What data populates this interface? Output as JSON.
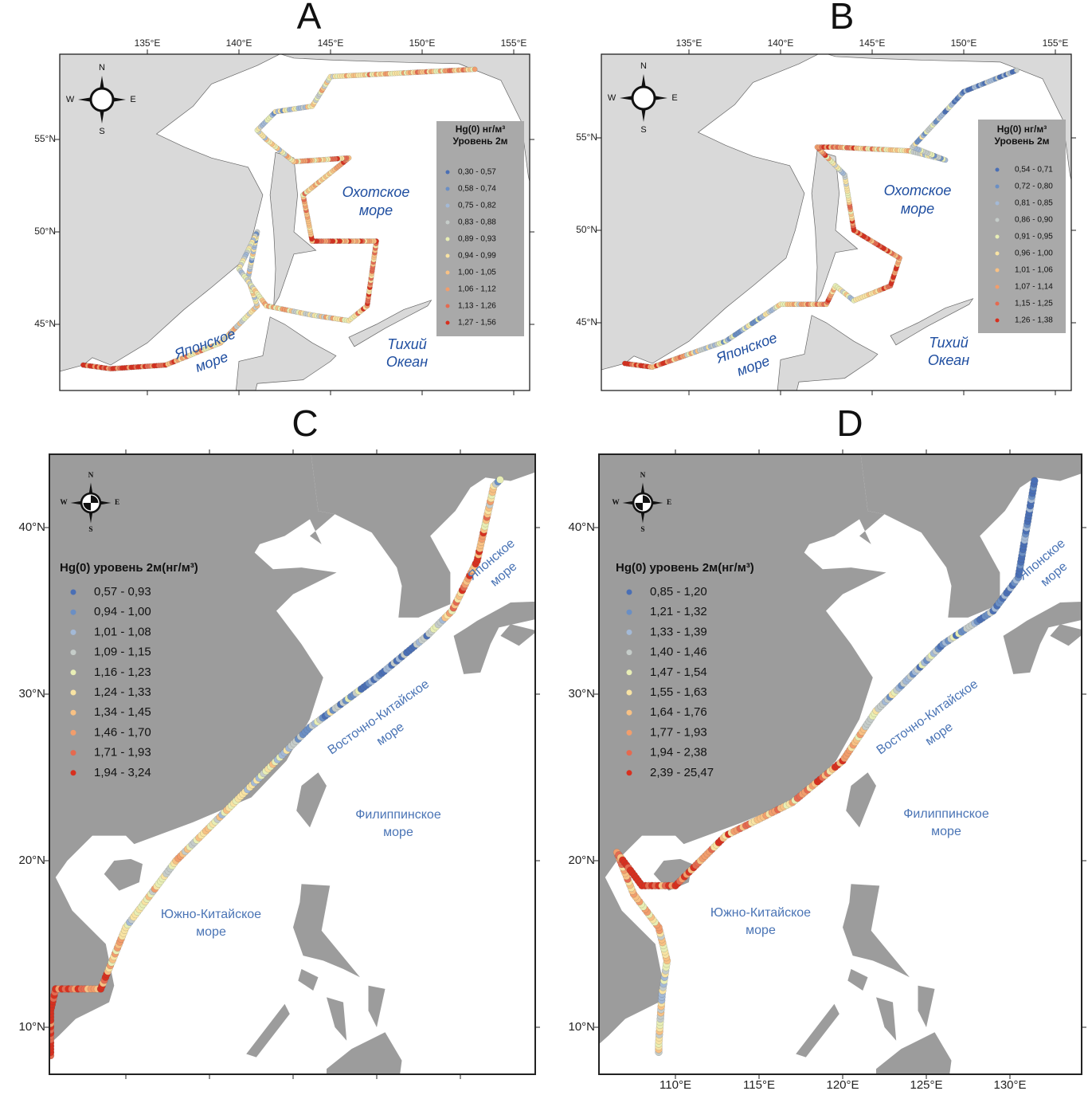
{
  "panels": [
    {
      "letter": "A",
      "x_ticks": [
        "135°E",
        "140°E",
        "145°E",
        "150°E",
        "155°E"
      ],
      "y_ticks": [
        "55°N",
        "50°N",
        "45°N"
      ],
      "compass": {
        "n": "N",
        "e": "E",
        "s": "S",
        "w": "W"
      },
      "legend": {
        "title": [
          "Hg(0) нг/м³",
          "Уровень 2м"
        ],
        "entries": [
          {
            "label": "0,30 - 0,57",
            "color": "#4a6fb5"
          },
          {
            "label": "0,58 - 0,74",
            "color": "#6b8fc4"
          },
          {
            "label": "0,75 - 0,82",
            "color": "#a3b9d6"
          },
          {
            "label": "0,83 - 0,88",
            "color": "#c5ccc9"
          },
          {
            "label": "0,89 - 0,93",
            "color": "#e8eeb5"
          },
          {
            "label": "0,94 - 0,99",
            "color": "#f8e3a3"
          },
          {
            "label": "1,00 - 1,05",
            "color": "#f8c184"
          },
          {
            "label": "1,06 - 1,12",
            "color": "#f29d6c"
          },
          {
            "label": "1,13 - 1,26",
            "color": "#e56a50"
          },
          {
            "label": "1,27 - 1,56",
            "color": "#d7301f"
          }
        ]
      },
      "seas": [
        {
          "lines": [
            "Охотское",
            "море"
          ]
        },
        {
          "lines": [
            "Японское",
            "море"
          ]
        },
        {
          "lines": [
            "Тихий",
            "Океан"
          ]
        }
      ]
    },
    {
      "letter": "B",
      "x_ticks": [
        "135°E",
        "140°E",
        "145°E",
        "150°E",
        "155°E"
      ],
      "y_ticks": [
        "55°N",
        "50°N",
        "45°N"
      ],
      "compass": {
        "n": "N",
        "e": "E",
        "s": "S",
        "w": "W"
      },
      "legend": {
        "title": [
          "Hg(0) нг/м³",
          "Уровень 2м"
        ],
        "entries": [
          {
            "label": "0,54 - 0,71",
            "color": "#4a6fb5"
          },
          {
            "label": "0,72 - 0,80",
            "color": "#6b8fc4"
          },
          {
            "label": "0,81 - 0,85",
            "color": "#a3b9d6"
          },
          {
            "label": "0,86 - 0,90",
            "color": "#c5ccc9"
          },
          {
            "label": "0,91 - 0,95",
            "color": "#e8eeb5"
          },
          {
            "label": "0,96 - 1,00",
            "color": "#f8e3a3"
          },
          {
            "label": "1,01 - 1,06",
            "color": "#f8c184"
          },
          {
            "label": "1,07 - 1,14",
            "color": "#f29d6c"
          },
          {
            "label": "1,15 - 1,25",
            "color": "#e56a50"
          },
          {
            "label": "1,26 - 1,38",
            "color": "#d7301f"
          }
        ]
      },
      "seas": [
        {
          "lines": [
            "Охотское",
            "море"
          ]
        },
        {
          "lines": [
            "Японское",
            "море"
          ]
        },
        {
          "lines": [
            "Тихий",
            "Океан"
          ]
        }
      ]
    },
    {
      "letter": "C",
      "y_ticks": [
        "40°N",
        "30°N",
        "20°N",
        "10°N"
      ],
      "compass": {
        "n": "N",
        "e": "E",
        "s": "S",
        "w": "W"
      },
      "legend": {
        "title": [
          "Hg(0) уровень 2м(нг/м³)"
        ],
        "entries": [
          {
            "label": "0,57 - 0,93",
            "color": "#4a6fb5"
          },
          {
            "label": "0,94 - 1,00",
            "color": "#6b8fc4"
          },
          {
            "label": "1,01 - 1,08",
            "color": "#a3b9d6"
          },
          {
            "label": "1,09 - 1,15",
            "color": "#c5ccc9"
          },
          {
            "label": "1,16 - 1,23",
            "color": "#e8eeb5"
          },
          {
            "label": "1,24 - 1,33",
            "color": "#f8e3a3"
          },
          {
            "label": "1,34 - 1,45",
            "color": "#f8c184"
          },
          {
            "label": "1,46 - 1,70",
            "color": "#f29d6c"
          },
          {
            "label": "1,71 - 1,93",
            "color": "#e56a50"
          },
          {
            "label": "1,94 - 3,24",
            "color": "#d7301f"
          }
        ]
      },
      "seas": [
        {
          "lines": [
            "Японское",
            "море"
          ]
        },
        {
          "lines": [
            "Восточно-Китайское",
            "море"
          ]
        },
        {
          "lines": [
            "Филиппинское",
            "море"
          ]
        },
        {
          "lines": [
            "Южно-Китайское",
            "море"
          ]
        }
      ]
    },
    {
      "letter": "D",
      "x_ticks": [
        "110°E",
        "115°E",
        "120°E",
        "125°E",
        "130°E"
      ],
      "y_ticks": [
        "40°N",
        "30°N",
        "20°N",
        "10°N"
      ],
      "compass": {
        "n": "N",
        "e": "E",
        "s": "S",
        "w": "W"
      },
      "legend": {
        "title": [
          "Hg(0) уровень 2м(нг/м³)"
        ],
        "entries": [
          {
            "label": "0,85 - 1,20",
            "color": "#4a6fb5"
          },
          {
            "label": "1,21 - 1,32",
            "color": "#6b8fc4"
          },
          {
            "label": "1,33 - 1,39",
            "color": "#a3b9d6"
          },
          {
            "label": "1,40 - 1,46",
            "color": "#c5ccc9"
          },
          {
            "label": "1,47 - 1,54",
            "color": "#e8eeb5"
          },
          {
            "label": "1,55 - 1,63",
            "color": "#f8e3a3"
          },
          {
            "label": "1,64 - 1,76",
            "color": "#f8c184"
          },
          {
            "label": "1,77 - 1,93",
            "color": "#f29d6c"
          },
          {
            "label": "1,94 - 2,38",
            "color": "#e56a50"
          },
          {
            "label": "2,39 - 25,47",
            "color": "#d7301f"
          }
        ]
      },
      "seas": [
        {
          "lines": [
            "Японское",
            "море"
          ]
        },
        {
          "lines": [
            "Восточно-Китайское",
            "море"
          ]
        },
        {
          "lines": [
            "Филиппинское",
            "море"
          ]
        },
        {
          "lines": [
            "Южно-Китайское",
            "море"
          ]
        }
      ]
    }
  ]
}
